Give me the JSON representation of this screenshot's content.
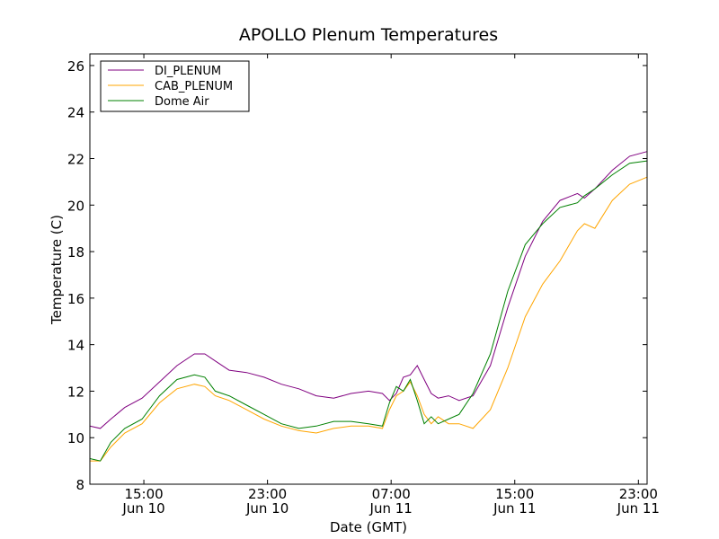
{
  "chart_data": {
    "type": "line",
    "title": "APOLLO Plenum Temperatures",
    "xlabel": "Date (GMT)",
    "ylabel": "Temperature (C)",
    "xlim": [
      0,
      16.0
    ],
    "ylim": [
      8,
      26.5
    ],
    "x_ticks": [
      {
        "x": 1.55,
        "line1": "15:00",
        "line2": "Jun 10"
      },
      {
        "x": 5.1,
        "line1": "23:00",
        "line2": "Jun 10"
      },
      {
        "x": 8.65,
        "line1": "07:00",
        "line2": "Jun 11"
      },
      {
        "x": 12.2,
        "line1": "15:00",
        "line2": "Jun 11"
      },
      {
        "x": 15.75,
        "line1": "23:00",
        "line2": "Jun 11"
      }
    ],
    "y_ticks": [
      8,
      10,
      12,
      14,
      16,
      18,
      20,
      22,
      24,
      26
    ],
    "legend_position": "top-left",
    "grid": false,
    "series": [
      {
        "name": "DI_PLENUM",
        "color": "#800080",
        "x": [
          0,
          0.3,
          0.6,
          1.0,
          1.5,
          2.0,
          2.5,
          3.0,
          3.3,
          3.6,
          4.0,
          4.5,
          5.0,
          5.5,
          6.0,
          6.5,
          7.0,
          7.5,
          8.0,
          8.4,
          8.6,
          8.8,
          9.0,
          9.2,
          9.4,
          9.6,
          9.8,
          10.0,
          10.3,
          10.6,
          11.0,
          11.5,
          12.0,
          12.5,
          13.0,
          13.5,
          14.0,
          14.2,
          14.5,
          15.0,
          15.5,
          16.0
        ],
        "values": [
          10.5,
          10.4,
          10.8,
          11.3,
          11.7,
          12.4,
          13.1,
          13.6,
          13.6,
          13.3,
          12.9,
          12.8,
          12.6,
          12.3,
          12.1,
          11.8,
          11.7,
          11.9,
          12.0,
          11.9,
          11.6,
          11.9,
          12.6,
          12.7,
          13.1,
          12.5,
          11.9,
          11.7,
          11.8,
          11.6,
          11.8,
          13.1,
          15.6,
          17.8,
          19.3,
          20.2,
          20.5,
          20.3,
          20.7,
          21.5,
          22.1,
          22.3
        ]
      },
      {
        "name": "CAB_PLENUM",
        "color": "#ffa500",
        "x": [
          0,
          0.3,
          0.6,
          1.0,
          1.5,
          2.0,
          2.5,
          3.0,
          3.3,
          3.6,
          4.0,
          4.5,
          5.0,
          5.5,
          6.0,
          6.5,
          7.0,
          7.5,
          8.0,
          8.4,
          8.6,
          8.8,
          9.0,
          9.2,
          9.4,
          9.6,
          9.8,
          10.0,
          10.3,
          10.6,
          11.0,
          11.5,
          12.0,
          12.5,
          13.0,
          13.5,
          14.0,
          14.2,
          14.5,
          15.0,
          15.5,
          16.0
        ],
        "values": [
          9.0,
          9.0,
          9.6,
          10.2,
          10.6,
          11.5,
          12.1,
          12.3,
          12.2,
          11.8,
          11.6,
          11.2,
          10.8,
          10.5,
          10.3,
          10.2,
          10.4,
          10.5,
          10.5,
          10.4,
          11.2,
          11.8,
          12.0,
          12.4,
          11.8,
          11.0,
          10.6,
          10.9,
          10.6,
          10.6,
          10.4,
          11.2,
          13.0,
          15.2,
          16.6,
          17.6,
          18.9,
          19.2,
          19.0,
          20.2,
          20.9,
          21.2
        ]
      },
      {
        "name": "Dome Air",
        "color": "#008000",
        "x": [
          0,
          0.3,
          0.6,
          1.0,
          1.5,
          2.0,
          2.5,
          3.0,
          3.3,
          3.6,
          4.0,
          4.5,
          5.0,
          5.5,
          6.0,
          6.5,
          7.0,
          7.5,
          8.0,
          8.4,
          8.6,
          8.8,
          9.0,
          9.2,
          9.4,
          9.6,
          9.8,
          10.0,
          10.3,
          10.6,
          11.0,
          11.5,
          12.0,
          12.5,
          13.0,
          13.5,
          14.0,
          14.2,
          14.5,
          15.0,
          15.5,
          16.0
        ],
        "values": [
          9.1,
          9.0,
          9.8,
          10.4,
          10.8,
          11.8,
          12.5,
          12.7,
          12.6,
          12.0,
          11.8,
          11.4,
          11.0,
          10.6,
          10.4,
          10.5,
          10.7,
          10.7,
          10.6,
          10.5,
          11.5,
          12.2,
          12.0,
          12.5,
          11.6,
          10.6,
          10.9,
          10.6,
          10.8,
          11.0,
          11.9,
          13.6,
          16.3,
          18.3,
          19.2,
          19.9,
          20.1,
          20.4,
          20.7,
          21.3,
          21.8,
          21.9
        ]
      }
    ]
  }
}
